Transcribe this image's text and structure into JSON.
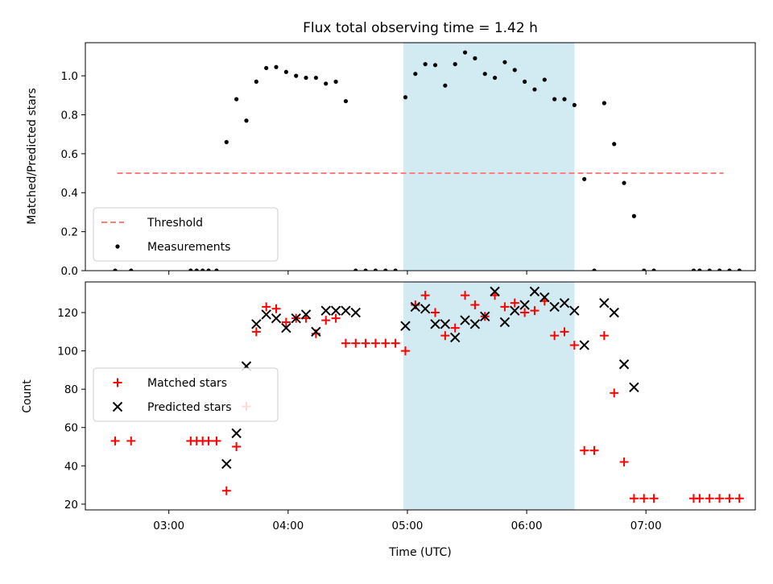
{
  "chart_data": [
    {
      "type": "scatter",
      "title": "Flux total observing time = 1.42 h",
      "xlabel": "",
      "ylabel": "Matched/Predicted stars",
      "xlim": [
        "02:18",
        "07:55"
      ],
      "ylim": [
        0,
        1.17
      ],
      "yticks": [
        "0.0",
        "0.2",
        "0.4",
        "0.6",
        "0.8",
        "1.0"
      ],
      "highlight_span": [
        "04:58",
        "06:24"
      ],
      "highlight_color": "#add8e6",
      "legend": {
        "position": "lower-left",
        "entries": [
          "Threshold",
          "Measurements"
        ]
      },
      "threshold": {
        "name": "Threshold",
        "value": 0.5,
        "x_start": "02:34",
        "x_end": "07:39",
        "color": "#ff7f7f",
        "style": "dashed"
      },
      "series": [
        {
          "name": "Measurements",
          "color": "#000000",
          "marker": "dot",
          "x": [
            "02:33",
            "02:41",
            "03:11",
            "03:14",
            "03:17",
            "03:20",
            "03:24",
            "03:29",
            "03:34",
            "03:39",
            "03:44",
            "03:49",
            "03:54",
            "03:59",
            "04:04",
            "04:09",
            "04:14",
            "04:19",
            "04:24",
            "04:29",
            "04:34",
            "04:39",
            "04:44",
            "04:49",
            "04:54",
            "04:59",
            "05:04",
            "05:09",
            "05:14",
            "05:19",
            "05:24",
            "05:29",
            "05:34",
            "05:39",
            "05:44",
            "05:49",
            "05:54",
            "05:59",
            "06:04",
            "06:09",
            "06:14",
            "06:19",
            "06:24",
            "06:29",
            "06:34",
            "06:39",
            "06:44",
            "06:49",
            "06:54",
            "06:59",
            "07:04",
            "07:24",
            "07:27",
            "07:32",
            "07:37",
            "07:42",
            "07:47"
          ],
          "y": [
            0,
            0,
            0,
            0,
            0,
            0,
            0,
            0.66,
            0.88,
            0.77,
            0.97,
            1.04,
            1.045,
            1.02,
            1.0,
            0.99,
            0.99,
            0.96,
            0.97,
            0.87,
            0,
            0,
            0,
            0,
            0,
            0.89,
            1.01,
            1.06,
            1.055,
            0.95,
            1.06,
            1.12,
            1.09,
            1.01,
            0.99,
            1.07,
            1.03,
            0.97,
            0.93,
            0.98,
            0.88,
            0.88,
            0.85,
            0.47,
            0,
            0.86,
            0.65,
            0.45,
            0.28,
            0,
            0,
            0,
            0,
            0,
            0,
            0,
            0
          ]
        }
      ]
    },
    {
      "type": "scatter",
      "title": "",
      "xlabel": "Time (UTC)",
      "ylabel": "Count",
      "xlim": [
        "02:18",
        "07:55"
      ],
      "ylim": [
        17,
        136
      ],
      "yticks": [
        "20",
        "40",
        "60",
        "80",
        "100",
        "120"
      ],
      "xticks": [
        "03:00",
        "04:00",
        "05:00",
        "06:00",
        "07:00"
      ],
      "highlight_span": [
        "04:58",
        "06:24"
      ],
      "highlight_color": "#add8e6",
      "legend": {
        "position": "center-left",
        "entries": [
          "Matched stars",
          "Predicted stars"
        ]
      },
      "series": [
        {
          "name": "Matched stars",
          "color": "#ff0000",
          "marker": "plus",
          "x": [
            "02:33",
            "02:41",
            "03:11",
            "03:14",
            "03:17",
            "03:20",
            "03:24",
            "03:29",
            "03:34",
            "03:39",
            "03:44",
            "03:49",
            "03:54",
            "03:59",
            "04:04",
            "04:09",
            "04:14",
            "04:19",
            "04:24",
            "04:29",
            "04:34",
            "04:39",
            "04:44",
            "04:49",
            "04:54",
            "04:59",
            "05:04",
            "05:09",
            "05:14",
            "05:19",
            "05:24",
            "05:29",
            "05:34",
            "05:39",
            "05:44",
            "05:49",
            "05:54",
            "05:59",
            "06:04",
            "06:09",
            "06:14",
            "06:19",
            "06:24",
            "06:29",
            "06:34",
            "06:39",
            "06:44",
            "06:49",
            "06:54",
            "06:59",
            "07:04",
            "07:24",
            "07:27",
            "07:32",
            "07:37",
            "07:42",
            "07:47"
          ],
          "y": [
            53,
            53,
            53,
            53,
            53,
            53,
            53,
            27,
            50,
            71,
            110,
            123,
            122,
            115,
            117,
            117,
            109,
            116,
            117,
            104,
            104,
            104,
            104,
            104,
            104,
            100,
            124,
            129,
            120,
            108,
            112,
            129,
            124,
            118,
            129,
            123,
            125,
            120,
            121,
            126,
            108,
            110,
            103,
            48,
            48,
            108,
            78,
            42,
            23,
            23,
            23,
            23,
            23,
            23,
            23,
            23,
            23
          ]
        },
        {
          "name": "Predicted stars",
          "color": "#000000",
          "marker": "cross",
          "x": [
            "03:29",
            "03:34",
            "03:39",
            "03:44",
            "03:49",
            "03:54",
            "03:59",
            "04:04",
            "04:09",
            "04:14",
            "04:19",
            "04:24",
            "04:29",
            "04:34",
            "04:59",
            "05:04",
            "05:09",
            "05:14",
            "05:19",
            "05:24",
            "05:29",
            "05:34",
            "05:39",
            "05:44",
            "05:49",
            "05:54",
            "05:59",
            "06:04",
            "06:09",
            "06:14",
            "06:19",
            "06:24",
            "06:29",
            "06:39",
            "06:44",
            "06:49",
            "06:54"
          ],
          "y": [
            41,
            57,
            92,
            114,
            119,
            117,
            112,
            117,
            119,
            110,
            121,
            121,
            121,
            120,
            113,
            123,
            122,
            114,
            114,
            107,
            116,
            114,
            118,
            131,
            115,
            121,
            124,
            131,
            128,
            123,
            125,
            121,
            103,
            125,
            120,
            93,
            81
          ]
        }
      ]
    }
  ]
}
